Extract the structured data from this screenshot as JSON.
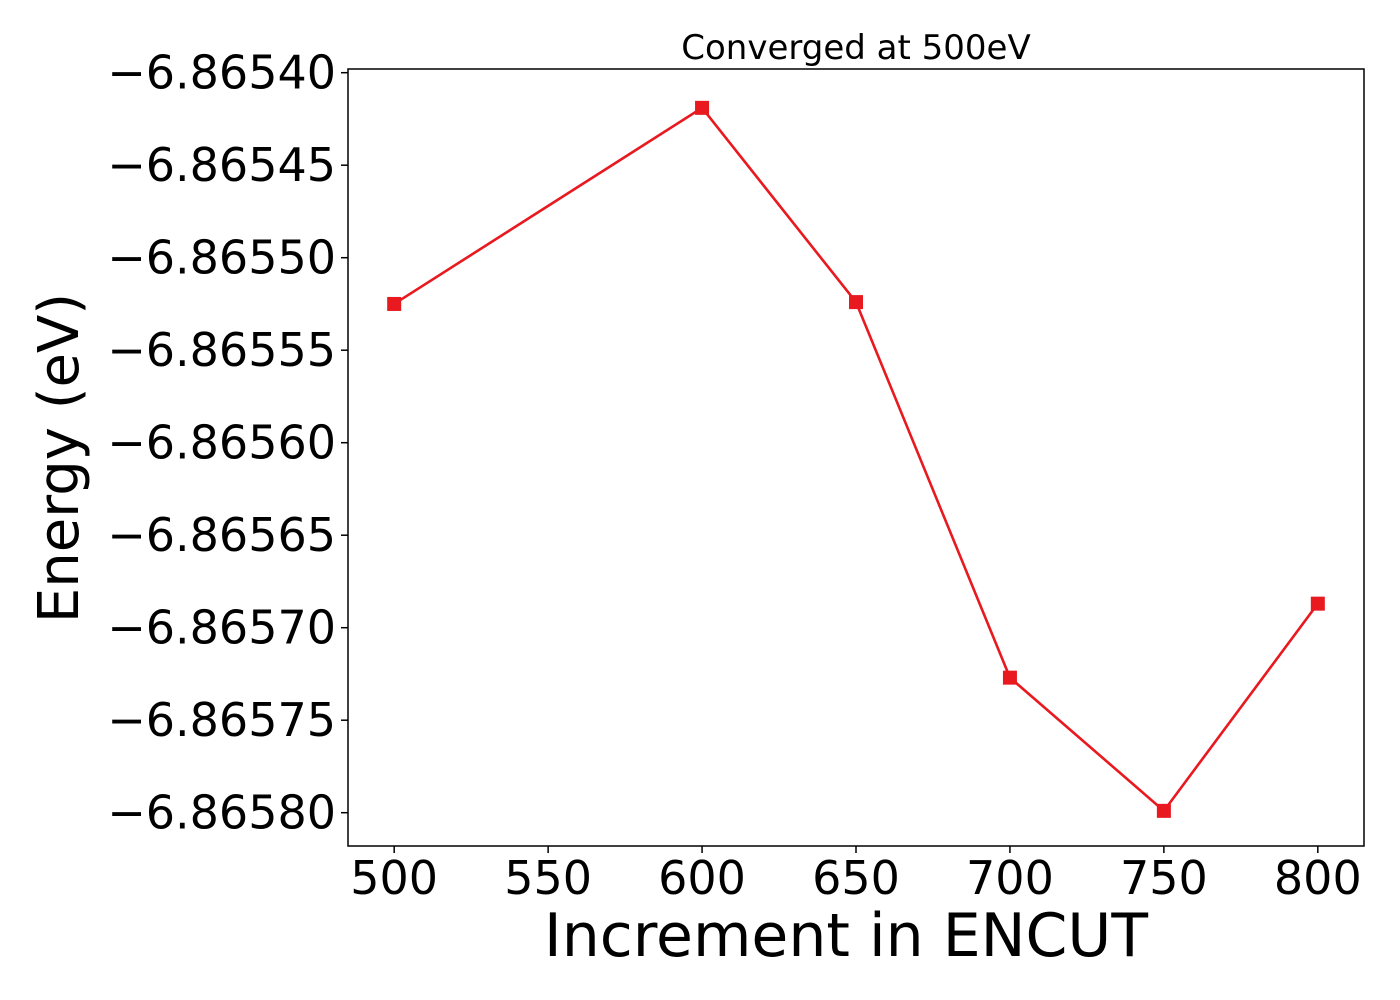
{
  "chart_data": {
    "type": "line",
    "title": "Converged at 500eV",
    "xlabel": "Increment in ENCUT",
    "ylabel": "Energy (eV)",
    "x": [
      500,
      600,
      650,
      700,
      750,
      800
    ],
    "series": [
      {
        "values": [
          -6.865525,
          -6.865419,
          -6.865524,
          -6.865727,
          -6.865799,
          -6.865687
        ],
        "color": "#e8191f",
        "marker": "square"
      }
    ],
    "xlim": [
      485,
      815
    ],
    "ylim": [
      -6.865818,
      -6.865398
    ],
    "xticks": [
      500,
      550,
      600,
      650,
      700,
      750,
      800
    ],
    "xtick_labels": [
      "500",
      "550",
      "600",
      "650",
      "700",
      "750",
      "800"
    ],
    "yticks": [
      -6.8654,
      -6.86545,
      -6.8655,
      -6.86555,
      -6.8656,
      -6.86565,
      -6.8657,
      -6.86575,
      -6.8658
    ],
    "ytick_labels": [
      "−6.86540",
      "−6.86545",
      "−6.86550",
      "−6.86555",
      "−6.86560",
      "−6.86565",
      "−6.86570",
      "−6.86575",
      "−6.86580"
    ],
    "grid": false,
    "legend": "none"
  }
}
